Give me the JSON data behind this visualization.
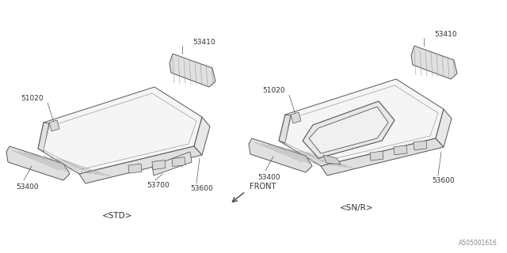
{
  "bg_color": "#ffffff",
  "line_color": "#666666",
  "light_gray": "#cccccc",
  "med_gray": "#aaaaaa",
  "dark_line": "#444444",
  "watermark": "A505001616",
  "labels": {
    "std": "<STD>",
    "snr": "<SN/R>",
    "front": "FRONT",
    "53410": "53410",
    "51020": "51020",
    "53400": "53400",
    "53600": "53600",
    "53700": "53700"
  },
  "figsize": [
    6.4,
    3.2
  ],
  "dpi": 100
}
